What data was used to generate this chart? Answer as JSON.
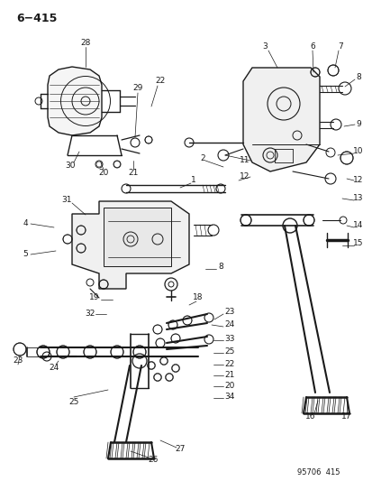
{
  "title": "6−415",
  "footer": "95706  415",
  "background_color": "#ffffff",
  "line_color": "#1a1a1a",
  "text_color": "#1a1a1a",
  "fig_width": 4.14,
  "fig_height": 5.33,
  "dpi": 100
}
